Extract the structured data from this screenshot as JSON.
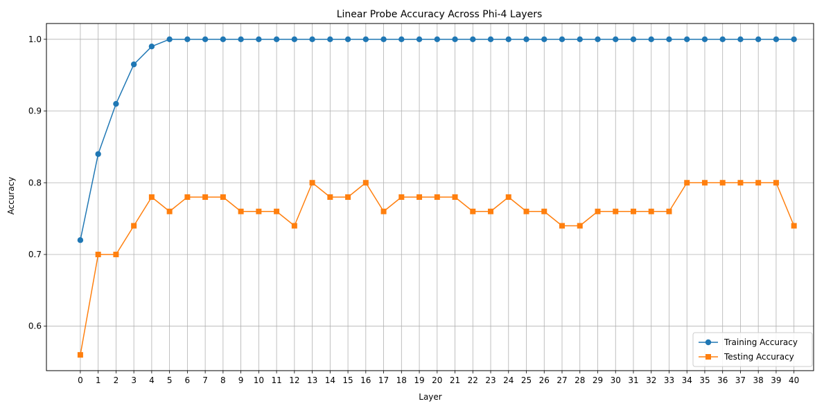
{
  "chart_data": {
    "type": "line",
    "title": "Linear Probe Accuracy Across Phi-4 Layers",
    "xlabel": "Layer",
    "ylabel": "Accuracy",
    "x": [
      0,
      1,
      2,
      3,
      4,
      5,
      6,
      7,
      8,
      9,
      10,
      11,
      12,
      13,
      14,
      15,
      16,
      17,
      18,
      19,
      20,
      21,
      22,
      23,
      24,
      25,
      26,
      27,
      28,
      29,
      30,
      31,
      32,
      33,
      34,
      35,
      36,
      37,
      38,
      39,
      40
    ],
    "xticks": [
      "0",
      "1",
      "2",
      "3",
      "4",
      "5",
      "6",
      "7",
      "8",
      "9",
      "10",
      "11",
      "12",
      "13",
      "14",
      "15",
      "16",
      "17",
      "18",
      "19",
      "20",
      "21",
      "22",
      "23",
      "24",
      "25",
      "26",
      "27",
      "28",
      "29",
      "30",
      "31",
      "32",
      "33",
      "34",
      "35",
      "36",
      "37",
      "38",
      "39",
      "40"
    ],
    "xlim": [
      -1.9,
      41.1
    ],
    "yticks": [
      0.6,
      0.7,
      0.8,
      0.9,
      1.0
    ],
    "ytick_labels": [
      "0.6",
      "0.7",
      "0.8",
      "0.9",
      "1.0"
    ],
    "ylim": [
      0.538,
      1.022
    ],
    "grid": true,
    "legend_position": "lower-right",
    "series": [
      {
        "name": "Training Accuracy",
        "color": "#1f77b4",
        "marker": "circle",
        "values": [
          0.72,
          0.84,
          0.91,
          0.965,
          0.99,
          1.0,
          1.0,
          1.0,
          1.0,
          1.0,
          1.0,
          1.0,
          1.0,
          1.0,
          1.0,
          1.0,
          1.0,
          1.0,
          1.0,
          1.0,
          1.0,
          1.0,
          1.0,
          1.0,
          1.0,
          1.0,
          1.0,
          1.0,
          1.0,
          1.0,
          1.0,
          1.0,
          1.0,
          1.0,
          1.0,
          1.0,
          1.0,
          1.0,
          1.0,
          1.0,
          1.0
        ]
      },
      {
        "name": "Testing Accuracy",
        "color": "#ff7f0e",
        "marker": "square",
        "values": [
          0.56,
          0.7,
          0.7,
          0.74,
          0.78,
          0.76,
          0.78,
          0.78,
          0.78,
          0.76,
          0.76,
          0.76,
          0.74,
          0.8,
          0.78,
          0.78,
          0.8,
          0.76,
          0.78,
          0.78,
          0.78,
          0.78,
          0.76,
          0.76,
          0.78,
          0.76,
          0.76,
          0.74,
          0.74,
          0.76,
          0.76,
          0.76,
          0.76,
          0.76,
          0.8,
          0.8,
          0.8,
          0.8,
          0.8,
          0.8,
          0.74
        ]
      }
    ]
  }
}
